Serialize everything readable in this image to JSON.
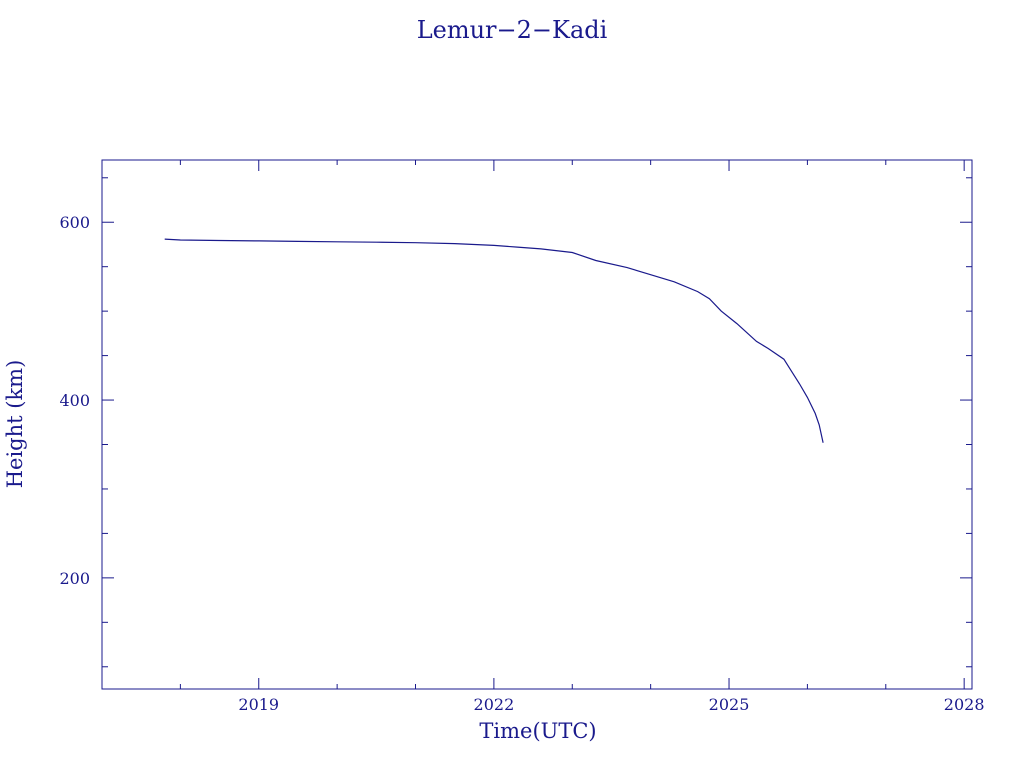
{
  "chart_data": {
    "type": "line",
    "title": "Lemur−2−Kadi",
    "xlabel": "Time(UTC)",
    "ylabel": "Height (km)",
    "xlim": [
      2017.0,
      2028.1
    ],
    "ylim": [
      75,
      670
    ],
    "x_ticks": [
      "2019",
      "2022",
      "2025",
      "2028"
    ],
    "y_ticks": [
      "200",
      "400",
      "600"
    ],
    "grid": false,
    "color": "#1a1a8c",
    "series": [
      {
        "points": [
          [
            2017.8,
            581
          ],
          [
            2018.0,
            580
          ],
          [
            2018.5,
            579.5
          ],
          [
            2019.0,
            579
          ],
          [
            2019.5,
            578.5
          ],
          [
            2020.0,
            578
          ],
          [
            2020.5,
            577.5
          ],
          [
            2021.0,
            577
          ],
          [
            2021.5,
            576
          ],
          [
            2022.0,
            574
          ],
          [
            2022.3,
            572
          ],
          [
            2022.6,
            570
          ],
          [
            2023.0,
            566
          ],
          [
            2023.3,
            557
          ],
          [
            2023.7,
            549
          ],
          [
            2024.0,
            541
          ],
          [
            2024.3,
            533
          ],
          [
            2024.6,
            522
          ],
          [
            2024.75,
            514
          ],
          [
            2024.9,
            500
          ],
          [
            2025.1,
            486
          ],
          [
            2025.35,
            466
          ],
          [
            2025.5,
            458
          ],
          [
            2025.7,
            446
          ],
          [
            2025.8,
            432
          ],
          [
            2025.9,
            418
          ],
          [
            2026.0,
            403
          ],
          [
            2026.1,
            385
          ],
          [
            2026.15,
            372
          ],
          [
            2026.2,
            352
          ]
        ]
      }
    ]
  }
}
